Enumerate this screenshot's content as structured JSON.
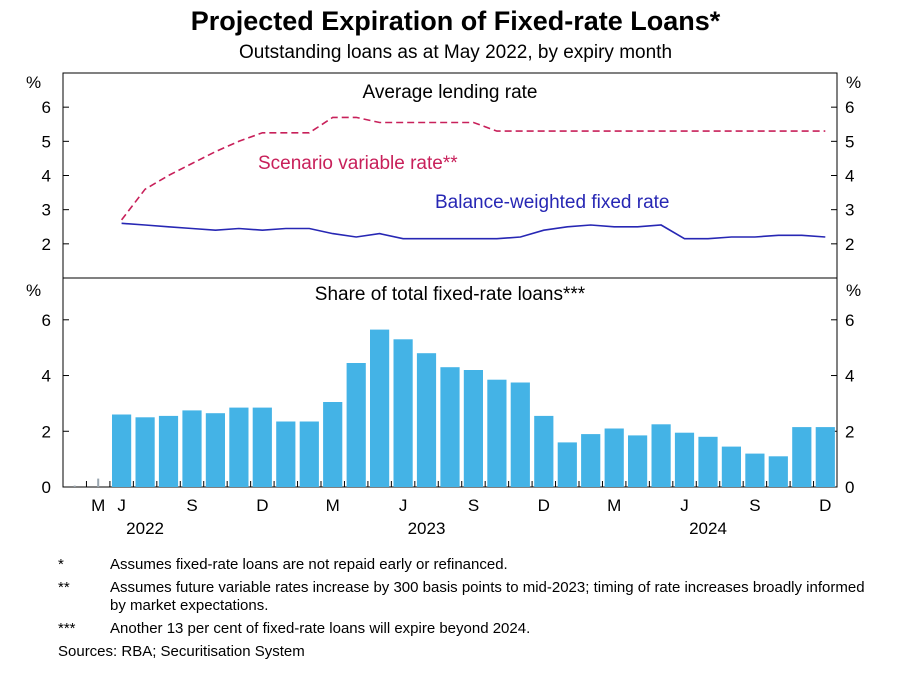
{
  "title": "Projected Expiration of Fixed-rate Loans*",
  "subtitle": "Outstanding loans as at May 2022, by expiry month",
  "colors": {
    "scenario": "#c8205a",
    "fixed": "#2727b4",
    "bar": "#44b3e6"
  },
  "chart_data": [
    {
      "type": "line",
      "title": "Average lending rate",
      "unit": "%",
      "ylim": [
        1,
        7
      ],
      "yticks": [
        2,
        3,
        4,
        5,
        6
      ],
      "x_range": [
        "2022-04",
        "2024-12"
      ],
      "series": [
        {
          "name": "Scenario variable rate**",
          "style": "dashed",
          "color": "#c8205a",
          "x": [
            "2022-06",
            "2022-07",
            "2022-08",
            "2022-09",
            "2022-10",
            "2022-11",
            "2022-12",
            "2023-01",
            "2023-02",
            "2023-03",
            "2023-04",
            "2023-05",
            "2023-06",
            "2023-07",
            "2023-08",
            "2023-09",
            "2023-10",
            "2023-11",
            "2023-12",
            "2024-01",
            "2024-02",
            "2024-03",
            "2024-04",
            "2024-05",
            "2024-06",
            "2024-07",
            "2024-08",
            "2024-09",
            "2024-10",
            "2024-11",
            "2024-12"
          ],
          "values": [
            2.7,
            3.6,
            4.0,
            4.35,
            4.7,
            5.0,
            5.25,
            5.25,
            5.25,
            5.7,
            5.7,
            5.55,
            5.55,
            5.55,
            5.55,
            5.55,
            5.3,
            5.3,
            5.3,
            5.3,
            5.3,
            5.3,
            5.3,
            5.3,
            5.3,
            5.3,
            5.3,
            5.3,
            5.3,
            5.3,
            5.3
          ]
        },
        {
          "name": "Balance-weighted fixed rate",
          "style": "solid",
          "color": "#2727b4",
          "x": [
            "2022-06",
            "2022-07",
            "2022-08",
            "2022-09",
            "2022-10",
            "2022-11",
            "2022-12",
            "2023-01",
            "2023-02",
            "2023-03",
            "2023-04",
            "2023-05",
            "2023-06",
            "2023-07",
            "2023-08",
            "2023-09",
            "2023-10",
            "2023-11",
            "2023-12",
            "2024-01",
            "2024-02",
            "2024-03",
            "2024-04",
            "2024-05",
            "2024-06",
            "2024-07",
            "2024-08",
            "2024-09",
            "2024-10",
            "2024-11",
            "2024-12"
          ],
          "values": [
            2.6,
            2.55,
            2.5,
            2.45,
            2.4,
            2.45,
            2.4,
            2.45,
            2.45,
            2.3,
            2.2,
            2.3,
            2.15,
            2.15,
            2.15,
            2.15,
            2.15,
            2.2,
            2.4,
            2.5,
            2.55,
            2.5,
            2.5,
            2.55,
            2.15,
            2.15,
            2.2,
            2.2,
            2.25,
            2.25,
            2.2
          ]
        }
      ]
    },
    {
      "type": "bar",
      "title": "Share of total fixed-rate loans***",
      "unit": "%",
      "ylim": [
        0,
        7.5
      ],
      "yticks": [
        0,
        2,
        4,
        6
      ],
      "categories": [
        "2022-04",
        "2022-05",
        "2022-06",
        "2022-07",
        "2022-08",
        "2022-09",
        "2022-10",
        "2022-11",
        "2022-12",
        "2023-01",
        "2023-02",
        "2023-03",
        "2023-04",
        "2023-05",
        "2023-06",
        "2023-07",
        "2023-08",
        "2023-09",
        "2023-10",
        "2023-11",
        "2023-12",
        "2024-01",
        "2024-02",
        "2024-03",
        "2024-04",
        "2024-05",
        "2024-06",
        "2024-07",
        "2024-08",
        "2024-09",
        "2024-10",
        "2024-11",
        "2024-12"
      ],
      "values": [
        0.05,
        0.3,
        2.6,
        2.5,
        2.55,
        2.75,
        2.65,
        2.85,
        2.85,
        2.35,
        2.35,
        3.05,
        4.45,
        5.65,
        5.3,
        4.8,
        4.3,
        4.2,
        3.85,
        3.75,
        2.55,
        1.6,
        1.9,
        2.1,
        1.85,
        2.25,
        1.95,
        1.8,
        1.45,
        1.2,
        1.1,
        2.15,
        2.15
      ]
    }
  ],
  "xaxis": {
    "tick_labels": [
      "M",
      "J",
      "S",
      "D",
      "M",
      "J",
      "S",
      "D",
      "M",
      "J",
      "S",
      "D"
    ],
    "year_labels": [
      "2022",
      "2023",
      "2024"
    ]
  },
  "notes": [
    {
      "mark": "*",
      "text": "Assumes fixed-rate loans are not repaid early or refinanced."
    },
    {
      "mark": "**",
      "text": "Assumes future variable rates increase by 300 basis points to mid-2023; timing of rate increases broadly informed by market expectations."
    },
    {
      "mark": "***",
      "text": "Another 13 per cent of fixed-rate loans will expire beyond 2024."
    }
  ],
  "sources": "Sources: RBA; Securitisation System"
}
